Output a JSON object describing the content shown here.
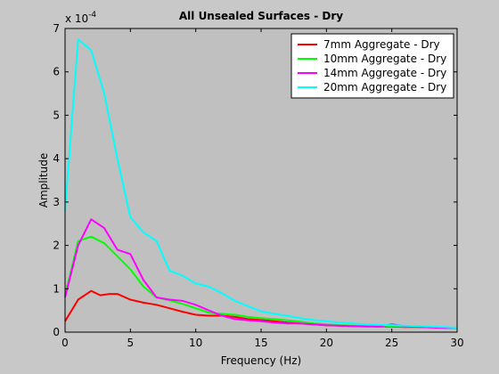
{
  "chart_data": {
    "type": "line",
    "title": "All Unsealed Surfaces - Dry",
    "xlabel": "Frequency (Hz)",
    "ylabel": "Amplitude",
    "y_exponent_base": "x 10",
    "y_exponent_power": "-4",
    "xlim": [
      0,
      30
    ],
    "ylim": [
      0,
      7
    ],
    "xticks": [
      0,
      5,
      10,
      15,
      20,
      25,
      30
    ],
    "yticks": [
      0,
      1,
      2,
      3,
      4,
      5,
      6,
      7
    ],
    "grid": false,
    "legend_position": "top-right",
    "colors": {
      "figure_background": "#c8c8c8",
      "axes_background": "#c0c0c0"
    },
    "series": [
      {
        "name": "7mm Aggregate - Dry",
        "color": "#ff0000",
        "x": [
          0,
          1,
          2,
          2.7,
          3.4,
          4,
          5,
          6,
          7,
          8,
          9,
          10,
          11,
          12,
          13,
          14,
          15,
          16,
          17,
          18,
          19,
          20,
          21,
          22,
          23,
          24,
          25,
          26,
          27,
          28,
          29,
          30
        ],
        "y": [
          0.25,
          0.75,
          0.95,
          0.85,
          0.88,
          0.88,
          0.75,
          0.68,
          0.63,
          0.55,
          0.47,
          0.4,
          0.38,
          0.38,
          0.35,
          0.3,
          0.28,
          0.25,
          0.22,
          0.2,
          0.18,
          0.16,
          0.15,
          0.14,
          0.14,
          0.13,
          0.13,
          0.12,
          0.12,
          0.11,
          0.1,
          0.1
        ]
      },
      {
        "name": "10mm Aggregate - Dry",
        "color": "#00ff00",
        "x": [
          0,
          1,
          2,
          3,
          4,
          5,
          6,
          7,
          8,
          9,
          10,
          11,
          12,
          13,
          14,
          15,
          16,
          17,
          18,
          19,
          20,
          21,
          22,
          23,
          24,
          25,
          26,
          27,
          28,
          29,
          30
        ],
        "y": [
          0.85,
          2.1,
          2.2,
          2.05,
          1.75,
          1.45,
          1.05,
          0.8,
          0.73,
          0.65,
          0.55,
          0.45,
          0.42,
          0.4,
          0.35,
          0.32,
          0.3,
          0.27,
          0.24,
          0.2,
          0.18,
          0.16,
          0.15,
          0.14,
          0.14,
          0.14,
          0.13,
          0.12,
          0.12,
          0.11,
          0.1
        ]
      },
      {
        "name": "14mm Aggregate - Dry",
        "color": "#ff00ff",
        "x": [
          0,
          1,
          2,
          3,
          4,
          5,
          6,
          7,
          8,
          9,
          10,
          11,
          12,
          13,
          14,
          15,
          16,
          17,
          18,
          19,
          20,
          21,
          22,
          23,
          24,
          25,
          26,
          27,
          28,
          29,
          30
        ],
        "y": [
          0.8,
          2.0,
          2.6,
          2.4,
          1.9,
          1.8,
          1.2,
          0.8,
          0.75,
          0.72,
          0.63,
          0.5,
          0.38,
          0.3,
          0.27,
          0.25,
          0.22,
          0.2,
          0.2,
          0.18,
          0.16,
          0.15,
          0.14,
          0.13,
          0.13,
          0.18,
          0.14,
          0.12,
          0.11,
          0.1,
          0.1
        ]
      },
      {
        "name": "20mm Aggregate - Dry",
        "color": "#00ffff",
        "x": [
          0,
          1,
          2,
          3,
          4,
          5,
          6,
          7,
          8,
          9,
          10,
          11,
          12,
          13,
          14,
          15,
          16,
          17,
          18,
          19,
          20,
          21,
          22,
          23,
          24,
          25,
          26,
          27,
          28,
          29,
          30
        ],
        "y": [
          2.8,
          6.75,
          6.5,
          5.5,
          4.0,
          2.65,
          2.3,
          2.1,
          1.42,
          1.3,
          1.12,
          1.05,
          0.9,
          0.72,
          0.6,
          0.48,
          0.42,
          0.38,
          0.32,
          0.28,
          0.25,
          0.22,
          0.2,
          0.18,
          0.17,
          0.16,
          0.15,
          0.14,
          0.13,
          0.12,
          0.1
        ]
      }
    ]
  }
}
